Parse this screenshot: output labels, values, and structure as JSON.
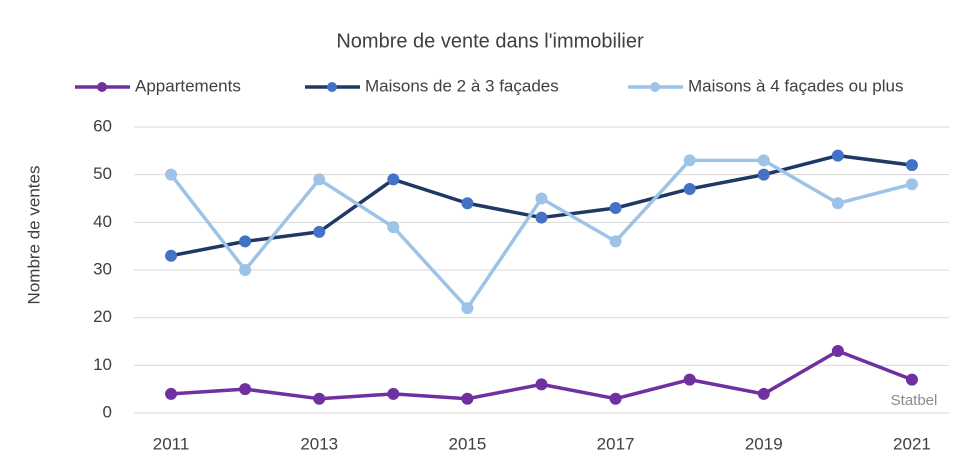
{
  "chart_data": {
    "type": "line",
    "title": "Nombre de vente dans l'immobilier",
    "y_label": "Nombre de ventes",
    "annotation": "Statbel",
    "x": [
      2011,
      2012,
      2013,
      2014,
      2015,
      2016,
      2017,
      2018,
      2019,
      2020,
      2021
    ],
    "xlim": [
      2010.5,
      2021.5
    ],
    "xticks": [
      2011,
      2013,
      2015,
      2017,
      2019,
      2021
    ],
    "ylim": [
      0,
      60
    ],
    "yticks": [
      0,
      10,
      20,
      30,
      40,
      50,
      60
    ],
    "grid": true,
    "legend": "top",
    "series": [
      {
        "name": "Appartements",
        "color": "#7030a0",
        "marker_color": "#7030a0",
        "values": [
          4,
          5,
          3,
          4,
          3,
          6,
          3,
          7,
          4,
          13,
          7
        ]
      },
      {
        "name": "Maisons de 2 à 3 façades",
        "color": "#203864",
        "marker_color": "#4472c4",
        "values": [
          33,
          36,
          38,
          49,
          44,
          41,
          43,
          47,
          50,
          54,
          52
        ]
      },
      {
        "name": "Maisons à 4 façades ou plus",
        "color": "#9dc3e6",
        "marker_color": "#9dc3e6",
        "values": [
          50,
          30,
          49,
          39,
          22,
          45,
          36,
          53,
          53,
          44,
          48
        ]
      }
    ]
  }
}
